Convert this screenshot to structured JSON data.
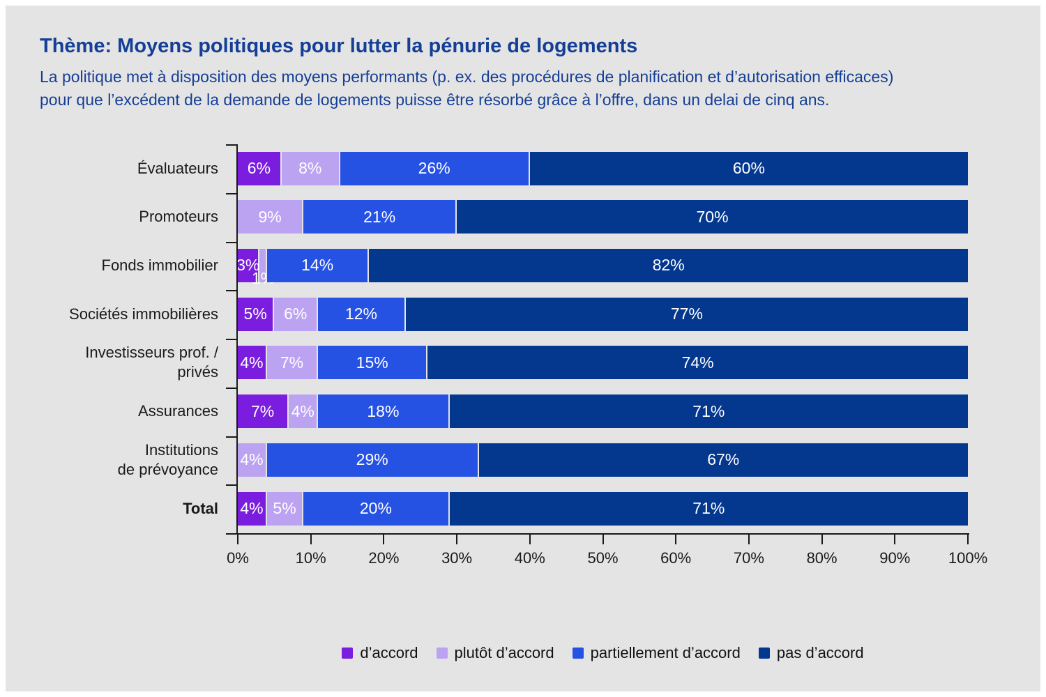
{
  "page": {
    "background": "#E4E4E4",
    "frame": "#FFFFFF"
  },
  "header": {
    "title": "Thème: Moyens politiques pour lutter la pénurie de logements",
    "subtitle_lines": [
      "La politique met à disposition des moyens performants (p. ex. des procédures de planification et d’autorisation efficaces)",
      "pour que l’excédent de la demande de logements puisse être résorbé grâce à l’offre, dans un delai de cinq ans."
    ],
    "text_color": "#153F96"
  },
  "chart_data": {
    "type": "bar",
    "variant": "stacked-horizontal",
    "title": "Thème: Moyens politiques pour lutter la pénurie de logements",
    "xlabel": "",
    "ylabel": "",
    "xlim": [
      0,
      100
    ],
    "x_ticks": [
      "0%",
      "10%",
      "20%",
      "30%",
      "40%",
      "50%",
      "60%",
      "70%",
      "80%",
      "90%",
      "100%"
    ],
    "grid": false,
    "legend_position": "bottom",
    "value_suffix": "%",
    "categories": [
      {
        "lines": [
          "Évaluateurs"
        ],
        "bold": false
      },
      {
        "lines": [
          "Promoteurs"
        ],
        "bold": false
      },
      {
        "lines": [
          "Fonds immobilier"
        ],
        "bold": false
      },
      {
        "lines": [
          "Sociétés immobilières"
        ],
        "bold": false
      },
      {
        "lines": [
          "Investisseurs prof. /",
          "privés"
        ],
        "bold": false
      },
      {
        "lines": [
          "Assurances"
        ],
        "bold": false
      },
      {
        "lines": [
          "Institutions",
          "de prévoyance"
        ],
        "bold": false
      },
      {
        "lines": [
          "Total"
        ],
        "bold": true
      }
    ],
    "series": [
      {
        "name": "d’accord",
        "color": "#7B1DDE",
        "values": [
          6,
          0,
          3,
          5,
          4,
          7,
          0,
          4
        ]
      },
      {
        "name": "plutôt d’accord",
        "color": "#BCA3F2",
        "values": [
          8,
          9,
          1,
          6,
          7,
          4,
          4,
          5
        ]
      },
      {
        "name": "partiellement d’accord",
        "color": "#2652E4",
        "values": [
          26,
          21,
          14,
          12,
          15,
          18,
          29,
          20
        ]
      },
      {
        "name": "pas d’accord",
        "color": "#04388F",
        "values": [
          60,
          70,
          82,
          77,
          74,
          71,
          67,
          71
        ]
      }
    ],
    "labels_below_bar": [
      {
        "category_index": 2,
        "series_index": 1
      }
    ]
  }
}
